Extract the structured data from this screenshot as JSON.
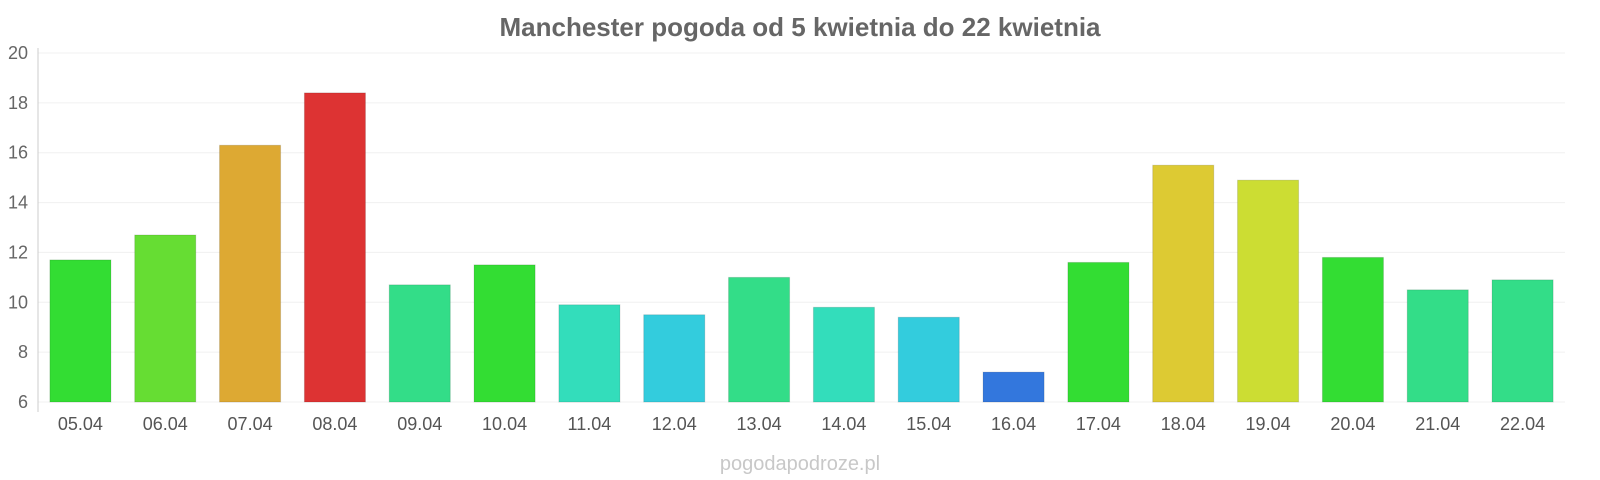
{
  "chart_data": {
    "type": "bar",
    "title": "Manchester pogoda od 5 kwietnia do 22 kwietnia",
    "xlabel": "",
    "ylabel": "",
    "ylim": [
      6,
      20
    ],
    "yticks": [
      6,
      8,
      10,
      12,
      14,
      16,
      18,
      20
    ],
    "grid": true,
    "categories": [
      "05.04",
      "06.04",
      "07.04",
      "08.04",
      "09.04",
      "10.04",
      "11.04",
      "12.04",
      "13.04",
      "14.04",
      "15.04",
      "16.04",
      "17.04",
      "18.04",
      "19.04",
      "20.04",
      "21.04",
      "22.04"
    ],
    "values": [
      11.7,
      12.7,
      16.3,
      18.4,
      10.7,
      11.5,
      9.9,
      9.5,
      11.0,
      9.8,
      9.4,
      7.2,
      11.6,
      15.5,
      14.9,
      11.8,
      10.5,
      10.9
    ],
    "colors": [
      "#33dd33",
      "#66dd33",
      "#dda933",
      "#dd3333",
      "#33dd88",
      "#33dd33",
      "#33ddbb",
      "#33ccdd",
      "#33dd88",
      "#33ddbb",
      "#33ccdd",
      "#3377dd",
      "#33dd33",
      "#ddca33",
      "#ccdd33",
      "#33dd33",
      "#33dd88",
      "#33dd88"
    ]
  },
  "watermark": "pogodapodroze.pl"
}
